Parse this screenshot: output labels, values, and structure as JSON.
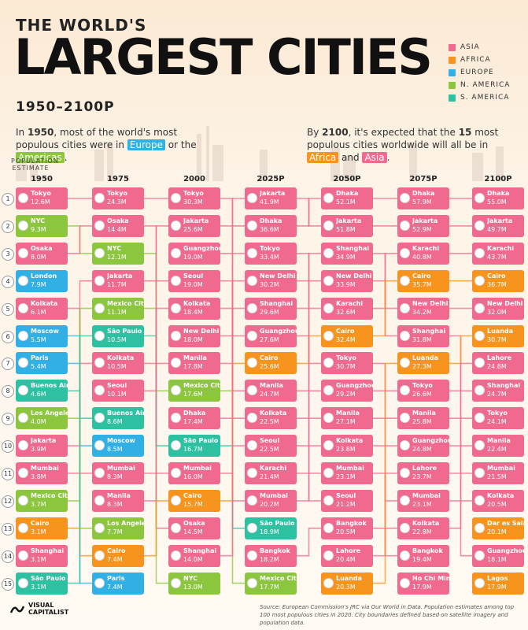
{
  "header": {
    "title_small": "THE WORLD'S",
    "title_big": "LARGEST CITIES",
    "subtitle": "1950–2100P",
    "intro_left": {
      "p1": "In ",
      "year": "1950",
      "p2": ", most of the world's most populous cities were in ",
      "europe": "Europe",
      "p3": " or the ",
      "americas": "Americas",
      "p4": "."
    },
    "intro_right": {
      "p1": "By ",
      "year": "2100",
      "p2": ", it's expected that the ",
      "count": "15",
      "p3": " most populous cities worldwide will all be in ",
      "africa": "Africa",
      "p4": " and ",
      "asia": "Asia",
      "p5": "."
    },
    "pop_label": "POPULATION ESTIMATE"
  },
  "legend": [
    {
      "label": "ASIA",
      "color": "#f06a8f"
    },
    {
      "label": "AFRICA",
      "color": "#f7941d"
    },
    {
      "label": "EUROPE",
      "color": "#31b0e5"
    },
    {
      "label": "N. AMERICA",
      "color": "#8cc63f"
    },
    {
      "label": "S. AMERICA",
      "color": "#2dc1a2"
    }
  ],
  "colors": {
    "asia": "#f06a8f",
    "africa": "#f7941d",
    "europe": "#31b0e5",
    "namerica": "#8cc63f",
    "samerica": "#2dc1a2"
  },
  "chart_data": {
    "type": "table",
    "ranks": [
      "1",
      "2",
      "3",
      "4",
      "5",
      "6",
      "7",
      "8",
      "9",
      "10",
      "11",
      "12",
      "13",
      "14",
      "15"
    ],
    "columns": [
      {
        "year": "1950",
        "cities": [
          {
            "name": "Tokyo",
            "pop": "12.6M",
            "region": "asia"
          },
          {
            "name": "NYC",
            "pop": "9.3M",
            "region": "namerica"
          },
          {
            "name": "Osaka",
            "pop": "8.0M",
            "region": "asia"
          },
          {
            "name": "London",
            "pop": "7.9M",
            "region": "europe"
          },
          {
            "name": "Kolkata",
            "pop": "6.1M",
            "region": "asia"
          },
          {
            "name": "Moscow",
            "pop": "5.5M",
            "region": "europe"
          },
          {
            "name": "Paris",
            "pop": "5.4M",
            "region": "europe"
          },
          {
            "name": "Buenos Aires",
            "pop": "4.6M",
            "region": "samerica"
          },
          {
            "name": "Los Angeles",
            "pop": "4.0M",
            "region": "namerica"
          },
          {
            "name": "Jakarta",
            "pop": "3.9M",
            "region": "asia"
          },
          {
            "name": "Mumbai",
            "pop": "3.8M",
            "region": "asia"
          },
          {
            "name": "Mexico City",
            "pop": "3.7M",
            "region": "namerica"
          },
          {
            "name": "Cairo",
            "pop": "3.1M",
            "region": "africa"
          },
          {
            "name": "Shanghai",
            "pop": "3.1M",
            "region": "asia"
          },
          {
            "name": "São Paulo",
            "pop": "3.1M",
            "region": "samerica"
          }
        ]
      },
      {
        "year": "1975",
        "cities": [
          {
            "name": "Tokyo",
            "pop": "24.3M",
            "region": "asia"
          },
          {
            "name": "Osaka",
            "pop": "14.4M",
            "region": "asia"
          },
          {
            "name": "NYC",
            "pop": "12.1M",
            "region": "namerica"
          },
          {
            "name": "Jakarta",
            "pop": "11.7M",
            "region": "asia"
          },
          {
            "name": "Mexico City",
            "pop": "11.1M",
            "region": "namerica"
          },
          {
            "name": "São Paulo",
            "pop": "10.5M",
            "region": "samerica"
          },
          {
            "name": "Kolkata",
            "pop": "10.5M",
            "region": "asia"
          },
          {
            "name": "Seoul",
            "pop": "10.1M",
            "region": "asia"
          },
          {
            "name": "Buenos Aires",
            "pop": "8.6M",
            "region": "samerica"
          },
          {
            "name": "Moscow",
            "pop": "8.5M",
            "region": "europe"
          },
          {
            "name": "Mumbai",
            "pop": "8.3M",
            "region": "asia"
          },
          {
            "name": "Manila",
            "pop": "8.3M",
            "region": "asia"
          },
          {
            "name": "Los Angeles",
            "pop": "7.7M",
            "region": "namerica"
          },
          {
            "name": "Cairo",
            "pop": "7.4M",
            "region": "africa"
          },
          {
            "name": "Paris",
            "pop": "7.4M",
            "region": "europe"
          }
        ]
      },
      {
        "year": "2000",
        "cities": [
          {
            "name": "Tokyo",
            "pop": "30.3M",
            "region": "asia"
          },
          {
            "name": "Jakarta",
            "pop": "25.6M",
            "region": "asia"
          },
          {
            "name": "Guangzhou",
            "pop": "19.0M",
            "region": "asia"
          },
          {
            "name": "Seoul",
            "pop": "19.0M",
            "region": "asia"
          },
          {
            "name": "Kolkata",
            "pop": "18.4M",
            "region": "asia"
          },
          {
            "name": "New Delhi",
            "pop": "18.0M",
            "region": "asia"
          },
          {
            "name": "Manila",
            "pop": "17.8M",
            "region": "asia"
          },
          {
            "name": "Mexico City",
            "pop": "17.6M",
            "region": "namerica"
          },
          {
            "name": "Dhaka",
            "pop": "17.4M",
            "region": "asia"
          },
          {
            "name": "São Paulo",
            "pop": "16.7M",
            "region": "samerica"
          },
          {
            "name": "Mumbai",
            "pop": "16.0M",
            "region": "asia"
          },
          {
            "name": "Cairo",
            "pop": "15.7M",
            "region": "africa"
          },
          {
            "name": "Osaka",
            "pop": "14.5M",
            "region": "asia"
          },
          {
            "name": "Shanghai",
            "pop": "14.0M",
            "region": "asia"
          },
          {
            "name": "NYC",
            "pop": "13.0M",
            "region": "namerica"
          }
        ]
      },
      {
        "year": "2025P",
        "cities": [
          {
            "name": "Jakarta",
            "pop": "41.9M",
            "region": "asia"
          },
          {
            "name": "Dhaka",
            "pop": "36.6M",
            "region": "asia"
          },
          {
            "name": "Tokyo",
            "pop": "33.4M",
            "region": "asia"
          },
          {
            "name": "New Delhi",
            "pop": "30.2M",
            "region": "asia"
          },
          {
            "name": "Shanghai",
            "pop": "29.6M",
            "region": "asia"
          },
          {
            "name": "Guangzhou",
            "pop": "27.6M",
            "region": "asia"
          },
          {
            "name": "Cairo",
            "pop": "25.6M",
            "region": "africa"
          },
          {
            "name": "Manila",
            "pop": "24.7M",
            "region": "asia"
          },
          {
            "name": "Kolkata",
            "pop": "22.5M",
            "region": "asia"
          },
          {
            "name": "Seoul",
            "pop": "22.5M",
            "region": "asia"
          },
          {
            "name": "Karachi",
            "pop": "21.4M",
            "region": "asia"
          },
          {
            "name": "Mumbai",
            "pop": "20.2M",
            "region": "asia"
          },
          {
            "name": "São Paulo",
            "pop": "18.9M",
            "region": "samerica"
          },
          {
            "name": "Bangkok",
            "pop": "18.2M",
            "region": "asia"
          },
          {
            "name": "Mexico City",
            "pop": "17.7M",
            "region": "namerica"
          }
        ]
      },
      {
        "year": "2050P",
        "cities": [
          {
            "name": "Dhaka",
            "pop": "52.1M",
            "region": "asia"
          },
          {
            "name": "Jakarta",
            "pop": "51.8M",
            "region": "asia"
          },
          {
            "name": "Shanghai",
            "pop": "34.9M",
            "region": "asia"
          },
          {
            "name": "New Delhi",
            "pop": "33.9M",
            "region": "asia"
          },
          {
            "name": "Karachi",
            "pop": "32.6M",
            "region": "asia"
          },
          {
            "name": "Cairo",
            "pop": "32.4M",
            "region": "africa"
          },
          {
            "name": "Tokyo",
            "pop": "30.7M",
            "region": "asia"
          },
          {
            "name": "Guangzhou",
            "pop": "29.2M",
            "region": "asia"
          },
          {
            "name": "Manila",
            "pop": "27.1M",
            "region": "asia"
          },
          {
            "name": "Kolkata",
            "pop": "23.8M",
            "region": "asia"
          },
          {
            "name": "Mumbai",
            "pop": "23.1M",
            "region": "asia"
          },
          {
            "name": "Seoul",
            "pop": "21.2M",
            "region": "asia"
          },
          {
            "name": "Bangkok",
            "pop": "20.5M",
            "region": "asia"
          },
          {
            "name": "Lahore",
            "pop": "20.4M",
            "region": "asia"
          },
          {
            "name": "Luanda",
            "pop": "20.3M",
            "region": "africa"
          }
        ]
      },
      {
        "year": "2075P",
        "cities": [
          {
            "name": "Dhaka",
            "pop": "57.9M",
            "region": "asia"
          },
          {
            "name": "Jakarta",
            "pop": "52.9M",
            "region": "asia"
          },
          {
            "name": "Karachi",
            "pop": "40.8M",
            "region": "asia"
          },
          {
            "name": "Cairo",
            "pop": "35.7M",
            "region": "africa"
          },
          {
            "name": "New Delhi",
            "pop": "34.2M",
            "region": "asia"
          },
          {
            "name": "Shanghai",
            "pop": "31.8M",
            "region": "asia"
          },
          {
            "name": "Luanda",
            "pop": "27.3M",
            "region": "africa"
          },
          {
            "name": "Tokyo",
            "pop": "26.6M",
            "region": "asia"
          },
          {
            "name": "Manila",
            "pop": "25.8M",
            "region": "asia"
          },
          {
            "name": "Guangzhou",
            "pop": "24.8M",
            "region": "asia"
          },
          {
            "name": "Lahore",
            "pop": "23.7M",
            "region": "asia"
          },
          {
            "name": "Mumbai",
            "pop": "23.1M",
            "region": "asia"
          },
          {
            "name": "Kolkata",
            "pop": "22.8M",
            "region": "asia"
          },
          {
            "name": "Bangkok",
            "pop": "19.4M",
            "region": "asia"
          },
          {
            "name": "Ho Chi Minh",
            "pop": "17.9M",
            "region": "asia"
          }
        ]
      },
      {
        "year": "2100P",
        "cities": [
          {
            "name": "Dhaka",
            "pop": "55.0M",
            "region": "asia"
          },
          {
            "name": "Jakarta",
            "pop": "49.7M",
            "region": "asia"
          },
          {
            "name": "Karachi",
            "pop": "43.7M",
            "region": "asia"
          },
          {
            "name": "Cairo",
            "pop": "36.7M",
            "region": "africa"
          },
          {
            "name": "New Delhi",
            "pop": "32.0M",
            "region": "asia"
          },
          {
            "name": "Luanda",
            "pop": "30.7M",
            "region": "africa"
          },
          {
            "name": "Lahore",
            "pop": "24.8M",
            "region": "asia"
          },
          {
            "name": "Shanghai",
            "pop": "24.7M",
            "region": "asia"
          },
          {
            "name": "Tokyo",
            "pop": "24.1M",
            "region": "asia"
          },
          {
            "name": "Manila",
            "pop": "22.4M",
            "region": "asia"
          },
          {
            "name": "Mumbai",
            "pop": "21.5M",
            "region": "asia"
          },
          {
            "name": "Kolkata",
            "pop": "20.5M",
            "region": "asia"
          },
          {
            "name": "Dar es Salaam",
            "pop": "20.1M",
            "region": "africa"
          },
          {
            "name": "Guangzhou",
            "pop": "18.1M",
            "region": "asia"
          },
          {
            "name": "Lagos",
            "pop": "17.9M",
            "region": "africa"
          }
        ]
      }
    ]
  },
  "footer": {
    "logo_line1": "VISUAL",
    "logo_line2": "CAPITALIST",
    "source": "Source: European Commission's JRC via Our World in Data. Population estimates among top 100 most populous cities in 2020. City boundaries defined based on satellite imagery and population data."
  }
}
